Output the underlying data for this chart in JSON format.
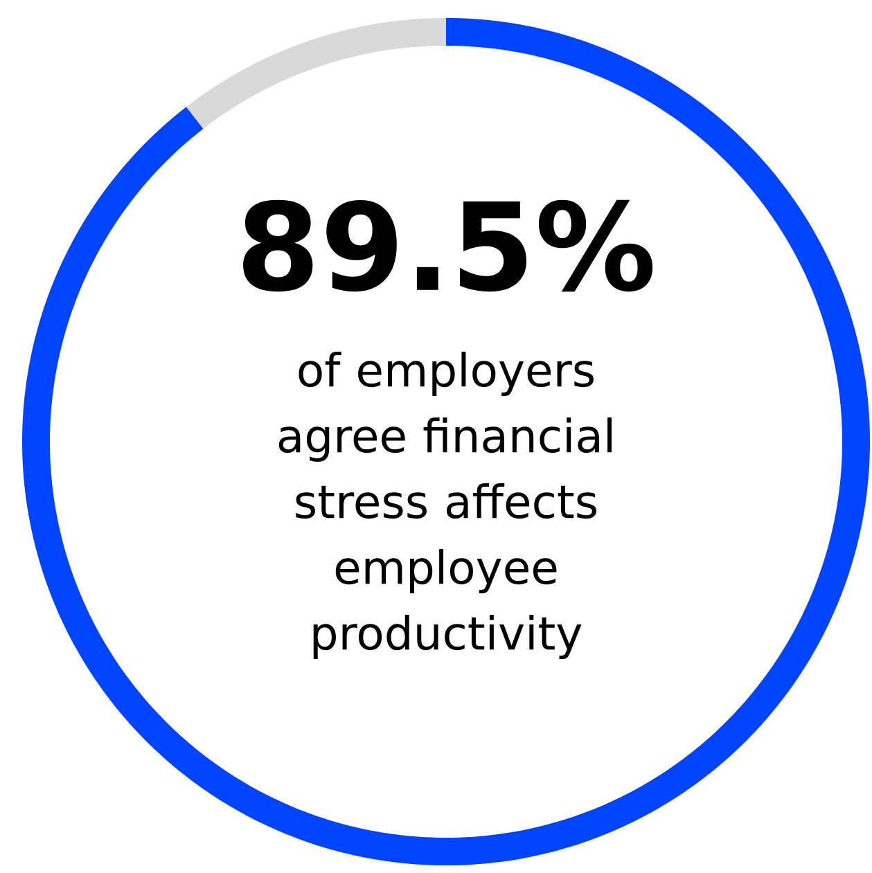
{
  "chart_data": {
    "type": "donut",
    "categories": [
      null,
      null
    ],
    "values": [
      89.5,
      10.5
    ],
    "colors": [
      "#0044ff",
      "#d9d9d9"
    ],
    "value_labels": [
      "89.5%",
      null
    ],
    "annotations": [
      "of employers agree financial stress affects employee productivity"
    ]
  }
}
